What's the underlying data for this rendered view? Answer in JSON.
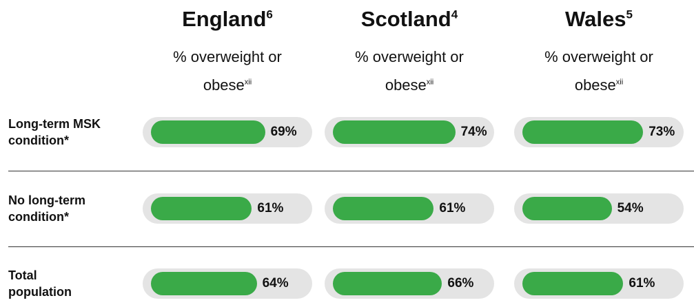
{
  "chart_data": {
    "type": "bar",
    "categories": [
      "Long-term MSK condition*",
      "No long-term condition*",
      "Total population"
    ],
    "xlim": [
      0,
      100
    ],
    "series": [
      {
        "name": "England",
        "note": "6",
        "subtitle": "% overweight or obese",
        "subtitle_note": "xii",
        "color": "#3aaa48",
        "values": [
          69,
          61,
          64
        ],
        "value_labels": [
          "69%",
          "61%",
          "64%"
        ]
      },
      {
        "name": "Scotland",
        "note": "4",
        "subtitle": "% overweight or obese",
        "subtitle_note": "xii",
        "color": "#3aaa48",
        "values": [
          74,
          61,
          66
        ],
        "value_labels": [
          "74%",
          "61%",
          "66%"
        ]
      },
      {
        "name": "Wales",
        "note": "5",
        "subtitle": "% overweight or obese",
        "subtitle_note": "xii",
        "color": "#3aaa48",
        "values": [
          73,
          54,
          61
        ],
        "value_labels": [
          "73%",
          "54%",
          "61%"
        ]
      }
    ]
  }
}
